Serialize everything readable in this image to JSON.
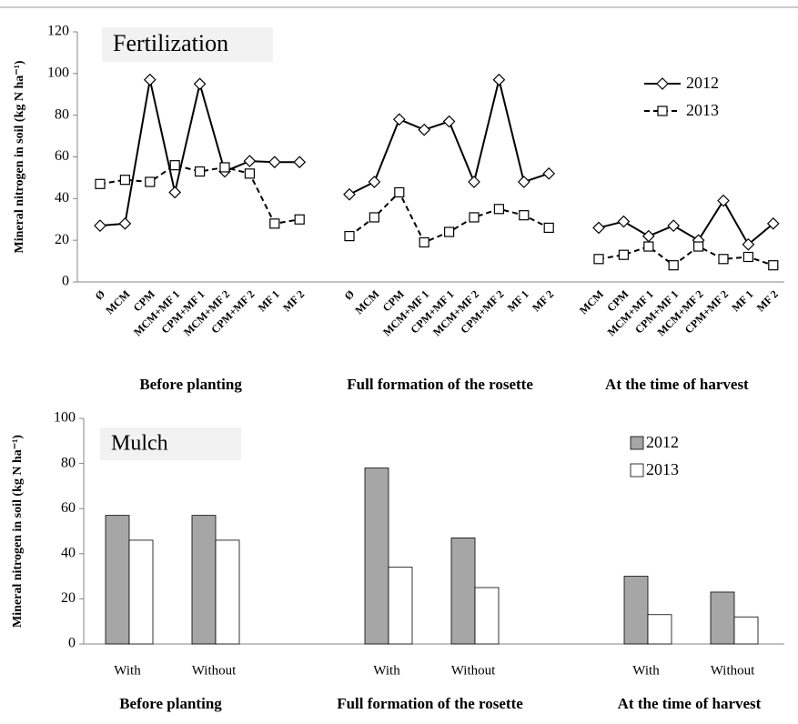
{
  "chart_data": [
    {
      "type": "line",
      "title": "Fertilization",
      "ylabel": "Mineral nitrogen in soil (kg N ha⁻¹)",
      "categories": [
        "Ø",
        "MCM",
        "CPM",
        "MCM+MF 1",
        "CPM+MF 1",
        "MCM+MF 2",
        "CPM+MF 2",
        "MF 1",
        "MF 2",
        null,
        "Ø",
        "MCM",
        "CPM",
        "MCM+MF 1",
        "CPM+MF 1",
        "MCM+MF 2",
        "CPM+MF 2",
        "MF 1",
        "MF 2",
        null,
        "MCM",
        "CPM",
        "MCM+MF 1",
        "CPM+MF 1",
        "MCM+MF 2",
        "CPM+MF 2",
        "MF 1",
        "MF 2"
      ],
      "groups": [
        "Before planting",
        "Full formation of  the rosette",
        "At the time of harvest"
      ],
      "series": [
        {
          "name": "2012",
          "color": "#000000",
          "line_style": "solid",
          "marker": "diamond",
          "values": [
            27,
            28,
            97,
            43,
            95,
            53,
            58,
            57.5,
            57.5,
            null,
            42,
            48,
            78,
            73,
            77,
            48,
            97,
            48,
            52,
            null,
            26,
            29,
            22,
            27,
            20,
            39,
            18,
            28
          ]
        },
        {
          "name": "2013",
          "color": "#000000",
          "line_style": "dashed",
          "marker": "square",
          "values": [
            47,
            49,
            48,
            56,
            53,
            55,
            52,
            28,
            30,
            null,
            22,
            31,
            43,
            19,
            24,
            31,
            35,
            32,
            26,
            null,
            11,
            13,
            17,
            8,
            17,
            11,
            12,
            8
          ]
        }
      ],
      "ylim": [
        0,
        120
      ],
      "yticks": [
        0,
        20,
        40,
        60,
        80,
        100,
        120
      ],
      "grid": false,
      "legend": "upper right"
    },
    {
      "type": "bar",
      "title": "Mulch",
      "ylabel": "Mineral nitrogen in soil (kg N ha⁻¹)",
      "categories": [
        "With",
        "Without",
        null,
        "With",
        "Without",
        null,
        "With",
        "Without"
      ],
      "groups": [
        "Before planting",
        "Full formation of the rosette",
        "At the time of harvest"
      ],
      "series": [
        {
          "name": "2012",
          "color": "#a6a6a6",
          "values": [
            57,
            57,
            null,
            78,
            47,
            null,
            30,
            23
          ]
        },
        {
          "name": "2013",
          "color": "#ffffff",
          "values": [
            46,
            46,
            null,
            34,
            25,
            null,
            13,
            12
          ]
        }
      ],
      "ylim": [
        0,
        100
      ],
      "yticks": [
        0,
        20,
        40,
        60,
        80,
        100
      ],
      "grid": false,
      "legend": "upper right"
    }
  ]
}
